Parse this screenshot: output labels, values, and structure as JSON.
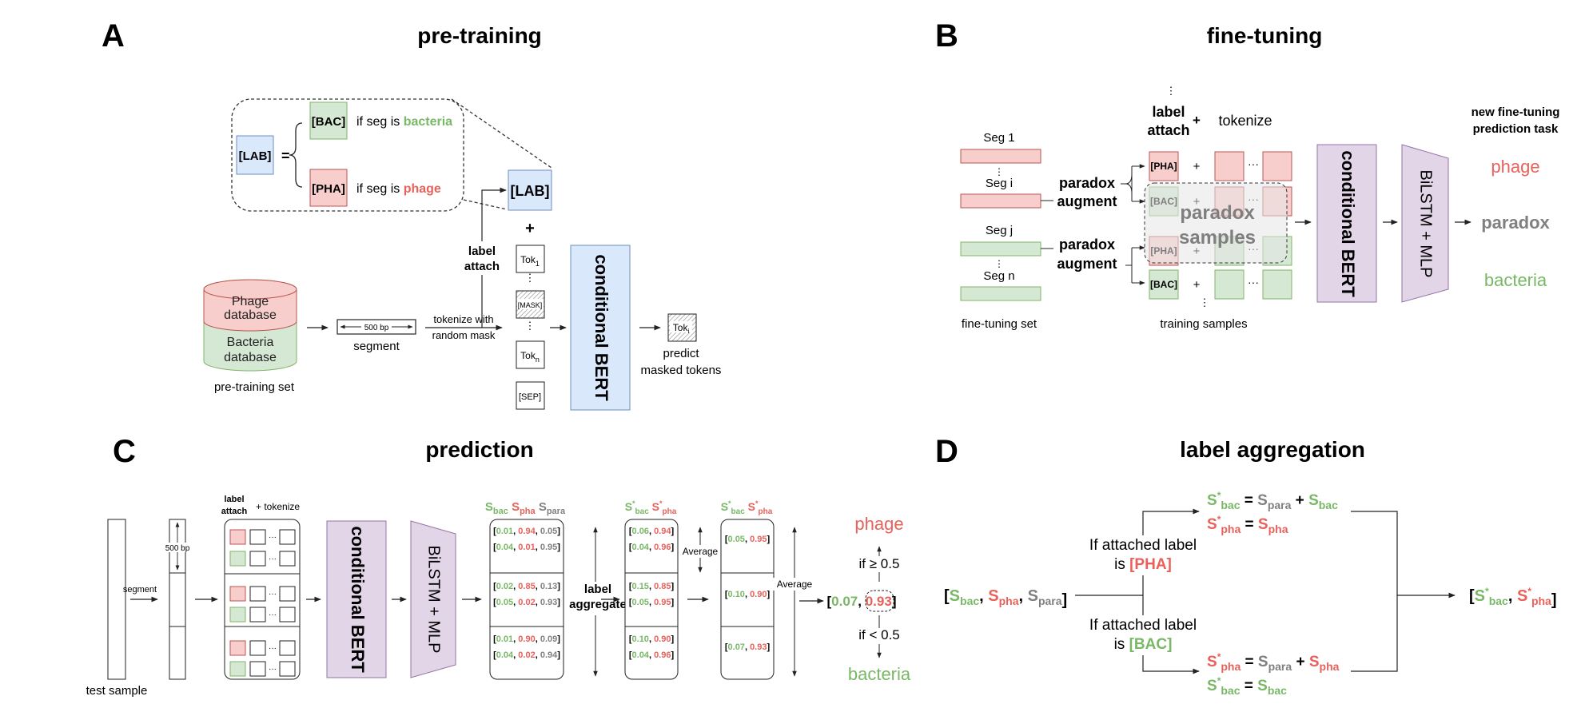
{
  "panels": {
    "A": {
      "letter": "A",
      "title": "pre-training"
    },
    "B": {
      "letter": "B",
      "title": "fine-tuning"
    },
    "C": {
      "letter": "C",
      "title": "prediction"
    },
    "D": {
      "letter": "D",
      "title": "label aggregation"
    }
  },
  "colors": {
    "bacteria": "#79b866",
    "phage": "#e8615b",
    "para": "#808080",
    "green_fill": "#d5e8d4",
    "red_fill": "#f8cecc",
    "blue_fill": "#dae8fc",
    "purple_fill": "#e1d5e7",
    "purple_stroke": "#9673a6",
    "blue_stroke": "#6c8ebf"
  },
  "A": {
    "lab_box": "[LAB]",
    "equals": "=",
    "bac_token": "[BAC]",
    "bac_cond_prefix": "if seg is ",
    "bac_cond_word": "bacteria",
    "pha_token": "[PHA]",
    "pha_cond_prefix": "if seg is ",
    "pha_cond_word": "phage",
    "phage_db": "Phage database",
    "bacteria_db": "Bacteria database",
    "pretraining_set": "pre-training set",
    "seg_len": "500 bp",
    "segment": "segment",
    "tokenize_mask_1": "tokenize with",
    "tokenize_mask_2": "random mask",
    "label_attach_1": "label",
    "label_attach_2": "attach",
    "lab_token": "[LAB]",
    "plus": "+",
    "tok1_base": "Tok",
    "tok1_sub": "1",
    "mask_token": "[MASK]",
    "tokn_base": "Tok",
    "tokn_sub": "n",
    "sep_token": "[SEP]",
    "model": "conditional BERT",
    "out_tok_base": "Tok",
    "out_tok_sub": "i",
    "predict_1": "predict",
    "predict_2": "masked tokens"
  },
  "B": {
    "seg1": "Seg 1",
    "segi": "Seg i",
    "segj": "Seg j",
    "segn": "Seg n",
    "finetuning_set": "fine-tuning set",
    "paradox_aug_1": "paradox",
    "paradox_aug_2": "augment",
    "label_attach_1": "label",
    "label_attach_2": "attach",
    "plus": "+",
    "tokenize": "tokenize",
    "pha_token": "[PHA]",
    "bac_token": "[BAC]",
    "ellipsis": "···",
    "paradox_samples_1": "paradox",
    "paradox_samples_2": "samples",
    "training_samples": "training samples",
    "model": "conditional BERT",
    "head": "BiLSTM + MLP",
    "task_title_1": "new fine-tuning",
    "task_title_2": "prediction task",
    "out_phage": "phage",
    "out_paradox": "paradox",
    "out_bacteria": "bacteria"
  },
  "C": {
    "test_sample": "test sample",
    "segment": "segment",
    "seg_len": "500 bp",
    "label_attach_1": "label",
    "label_attach_2": "attach",
    "plus_tokenize": "+ tokenize",
    "model": "conditional BERT",
    "head": "BiLSTM + MLP",
    "hdr1": [
      {
        "s": "S",
        "sub": "bac",
        "c": "bac"
      },
      {
        "s": "S",
        "sub": "pha",
        "c": "pha"
      },
      {
        "s": "S",
        "sub": "para",
        "c": "para"
      }
    ],
    "scores": [
      [
        [
          "0.01",
          "0.94",
          "0.05"
        ],
        [
          "0.04",
          "0.01",
          "0.95"
        ]
      ],
      [
        [
          "0.02",
          "0.85",
          "0.13"
        ],
        [
          "0.05",
          "0.02",
          "0.93"
        ]
      ],
      [
        [
          "0.01",
          "0.90",
          "0.09"
        ],
        [
          "0.04",
          "0.02",
          "0.94"
        ]
      ]
    ],
    "label_agg_1": "label",
    "label_agg_2": "aggregate",
    "agg": [
      [
        [
          "0.06",
          "0.94"
        ],
        [
          "0.04",
          "0.96"
        ]
      ],
      [
        [
          "0.15",
          "0.85"
        ],
        [
          "0.05",
          "0.95"
        ]
      ],
      [
        [
          "0.10",
          "0.90"
        ],
        [
          "0.04",
          "0.96"
        ]
      ]
    ],
    "average": "Average",
    "avg": [
      [
        "0.05",
        "0.95"
      ],
      [
        "0.10",
        "0.90"
      ],
      [
        "0.07",
        "0.93"
      ]
    ],
    "final": [
      "0.07",
      "0.93"
    ],
    "cond_ge": "if ≥ 0.5",
    "cond_lt": "if < 0.5",
    "out_phage": "phage",
    "out_bacteria": "bacteria"
  },
  "D": {
    "input_open": "[",
    "input_close": "]",
    "if_pha_1": "If attached label",
    "if_pha_2_prefix": "is ",
    "if_pha_2_token": "[PHA]",
    "if_bac_1": "If attached label",
    "if_bac_2_prefix": "is ",
    "if_bac_2_token": "[BAC]",
    "eq": "=",
    "plus": "+",
    "star": "*",
    "S": "S",
    "bac": "bac",
    "pha": "pha",
    "para": "para"
  }
}
